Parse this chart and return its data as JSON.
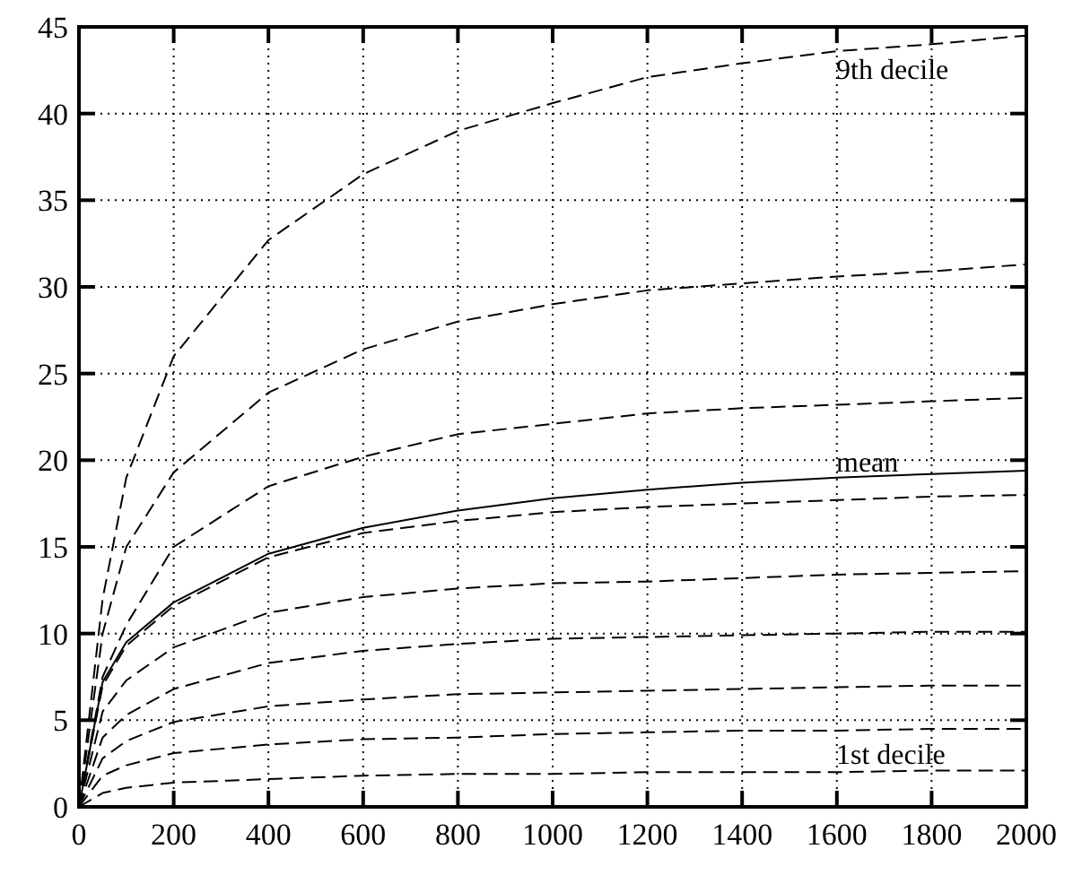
{
  "chart_data": {
    "type": "line",
    "x": [
      0,
      50,
      100,
      200,
      400,
      600,
      800,
      1000,
      1200,
      1400,
      1600,
      1800,
      2000
    ],
    "xlim": [
      0,
      2000
    ],
    "xticks": [
      0,
      200,
      400,
      600,
      800,
      1000,
      1200,
      1400,
      1600,
      1800,
      2000
    ],
    "ylim": [
      0,
      45
    ],
    "yticks": [
      0,
      5,
      10,
      15,
      20,
      25,
      30,
      35,
      40,
      45
    ],
    "grid": true,
    "marker": "none",
    "series": [
      {
        "color": "#000000",
        "line_style": "dashed",
        "values": [
          0,
          12,
          19,
          26,
          32.7,
          36.5,
          39,
          40.6,
          42.1,
          42.9,
          43.6,
          44,
          44.5
        ]
      },
      {
        "color": "#000000",
        "line_style": "dashed",
        "values": [
          0,
          10,
          15,
          19.3,
          23.9,
          26.4,
          28,
          29,
          29.8,
          30.2,
          30.6,
          30.9,
          31.3
        ]
      },
      {
        "color": "#000000",
        "line_style": "dashed",
        "values": [
          0,
          7.5,
          10.5,
          15,
          18.5,
          20.2,
          21.5,
          22.1,
          22.7,
          23,
          23.2,
          23.4,
          23.6
        ]
      },
      {
        "color": "#000000",
        "line_style": "solid",
        "values": [
          0,
          7.2,
          9.5,
          11.8,
          14.6,
          16.1,
          17.1,
          17.8,
          18.3,
          18.7,
          19,
          19.2,
          19.4
        ]
      },
      {
        "color": "#000000",
        "line_style": "dashed",
        "values": [
          0,
          7,
          9.3,
          11.6,
          14.4,
          15.8,
          16.5,
          17,
          17.3,
          17.5,
          17.7,
          17.9,
          18
        ]
      },
      {
        "color": "#000000",
        "line_style": "dashed",
        "values": [
          0,
          5.5,
          7.3,
          9.2,
          11.2,
          12.1,
          12.6,
          12.9,
          13,
          13.2,
          13.4,
          13.5,
          13.6
        ]
      },
      {
        "color": "#000000",
        "line_style": "dashed",
        "values": [
          0,
          4,
          5.3,
          6.8,
          8.3,
          9,
          9.4,
          9.7,
          9.8,
          9.9,
          10,
          10.1,
          10.1
        ]
      },
      {
        "color": "#000000",
        "line_style": "dashed",
        "values": [
          0,
          2.8,
          3.8,
          4.9,
          5.8,
          6.2,
          6.5,
          6.6,
          6.7,
          6.8,
          6.9,
          7,
          7
        ]
      },
      {
        "color": "#000000",
        "line_style": "dashed",
        "values": [
          0,
          1.8,
          2.4,
          3.1,
          3.6,
          3.9,
          4,
          4.2,
          4.3,
          4.4,
          4.4,
          4.5,
          4.5
        ]
      },
      {
        "color": "#000000",
        "line_style": "dashed",
        "values": [
          0,
          0.8,
          1.1,
          1.4,
          1.6,
          1.8,
          1.9,
          1.9,
          2,
          2,
          2,
          2.1,
          2.1
        ]
      }
    ],
    "annotations": [
      "9th decile",
      "mean",
      "1st decile"
    ]
  }
}
